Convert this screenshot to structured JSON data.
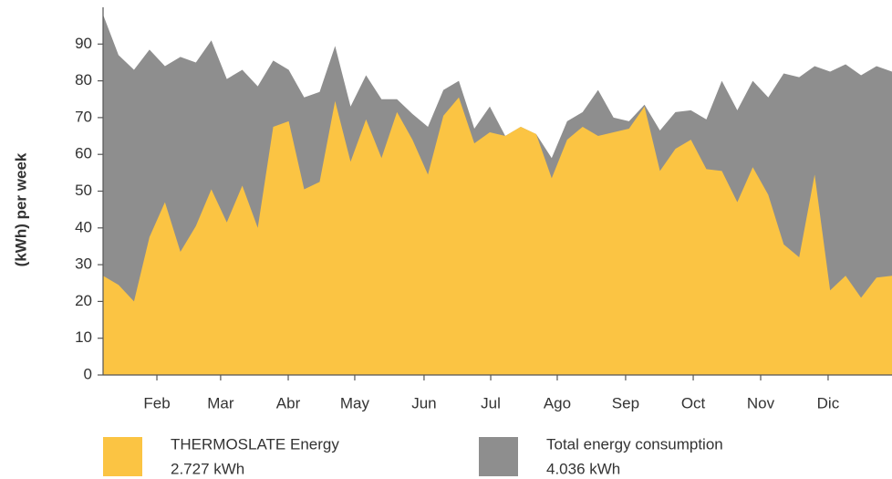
{
  "chart_data": {
    "type": "area",
    "y_label": "(kWh) per week",
    "x": [
      0,
      1,
      2,
      3,
      4,
      5,
      6,
      7,
      8,
      9,
      10,
      11,
      12,
      13,
      14,
      15,
      16,
      17,
      18,
      19,
      20,
      21,
      22,
      23,
      24,
      25,
      26,
      27,
      28,
      29,
      30,
      31,
      32,
      33,
      34,
      35,
      36,
      37,
      38,
      39,
      40,
      41,
      42,
      43,
      44,
      45,
      46,
      47,
      48,
      49,
      50,
      51
    ],
    "xlim": [
      0,
      51
    ],
    "xticks": [
      {
        "value": 3.48,
        "label": "Feb"
      },
      {
        "value": 7.6,
        "label": "Mar"
      },
      {
        "value": 11.97,
        "label": "Abr"
      },
      {
        "value": 16.27,
        "label": "May"
      },
      {
        "value": 20.75,
        "label": "Jun"
      },
      {
        "value": 25.06,
        "label": "Jul"
      },
      {
        "value": 29.36,
        "label": "Ago"
      },
      {
        "value": 33.78,
        "label": "Sep"
      },
      {
        "value": 38.15,
        "label": "Oct"
      },
      {
        "value": 42.51,
        "label": "Nov"
      },
      {
        "value": 46.87,
        "label": "Dic"
      }
    ],
    "ylim": [
      0,
      100
    ],
    "yticks": [
      0,
      10,
      20,
      30,
      40,
      50,
      60,
      70,
      80,
      90
    ],
    "series": [
      {
        "name": "Total energy consumption",
        "total": "4.036 kWh",
        "color": "#8e8e8e",
        "values": [
          98,
          87,
          83,
          88.5,
          84,
          86.5,
          85,
          91,
          80.5,
          83,
          78.5,
          85.5,
          83,
          75.5,
          77,
          89.5,
          73,
          81.5,
          75,
          75,
          71,
          67.5,
          77.5,
          80,
          67,
          73,
          65,
          67.5,
          65.5,
          59,
          69,
          71.5,
          77.5,
          70,
          69,
          73.5,
          66.5,
          71.5,
          72,
          69.5,
          80,
          72,
          80,
          75.5,
          82,
          81,
          84,
          82.5,
          84.5,
          81.5,
          84,
          82.5
        ]
      },
      {
        "name": "THERMOSLATE Energy",
        "total": "2.727 kWh",
        "color": "#fbc443",
        "values": [
          27,
          24.5,
          20,
          37.5,
          47,
          33.5,
          40.5,
          50.5,
          41.5,
          51.5,
          40,
          67.5,
          69,
          50.5,
          52.5,
          74.5,
          58,
          69.5,
          59,
          71.5,
          64,
          54.5,
          70.5,
          75.5,
          63,
          66,
          65,
          67.5,
          65.5,
          53.5,
          64,
          67.5,
          65,
          66,
          67,
          73,
          55.5,
          61.5,
          64,
          56,
          55.5,
          47,
          56.5,
          49,
          35.5,
          32,
          54.5,
          23,
          27,
          21,
          26.5,
          27
        ]
      }
    ],
    "legend_order": [
      1,
      0
    ]
  }
}
